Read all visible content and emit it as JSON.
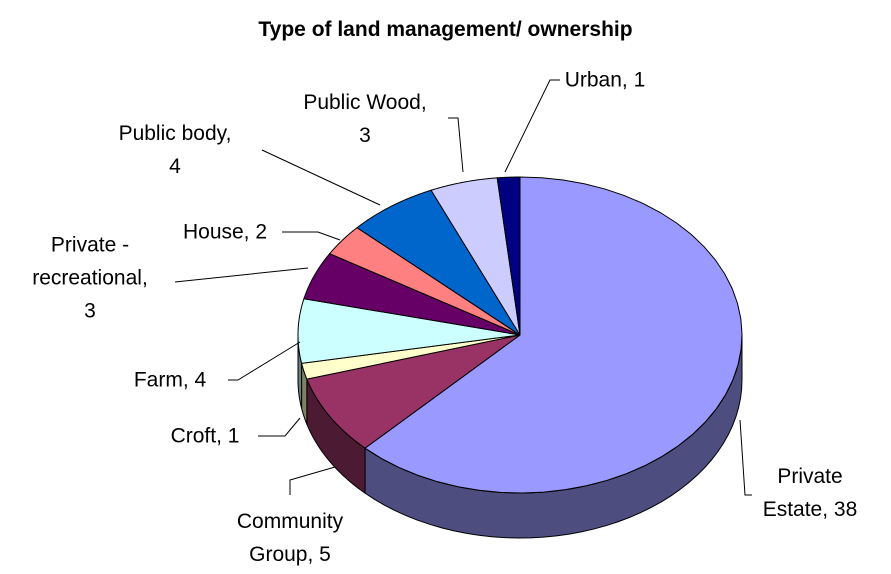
{
  "chart_data": {
    "type": "pie",
    "title": "Type of land management/ ownership",
    "categories": [
      "Private Estate",
      "Community Group",
      "Croft",
      "Farm",
      "Private - recreational",
      "House",
      "Public body",
      "Public Wood",
      "Urban"
    ],
    "values": [
      38,
      5,
      1,
      4,
      3,
      2,
      4,
      3,
      1
    ],
    "colors": [
      "#9999ff",
      "#993366",
      "#ffffcc",
      "#ccffff",
      "#660066",
      "#ff8080",
      "#0066cc",
      "#ccccff",
      "#000080"
    ],
    "label_separator": ", ",
    "three_d": true
  }
}
